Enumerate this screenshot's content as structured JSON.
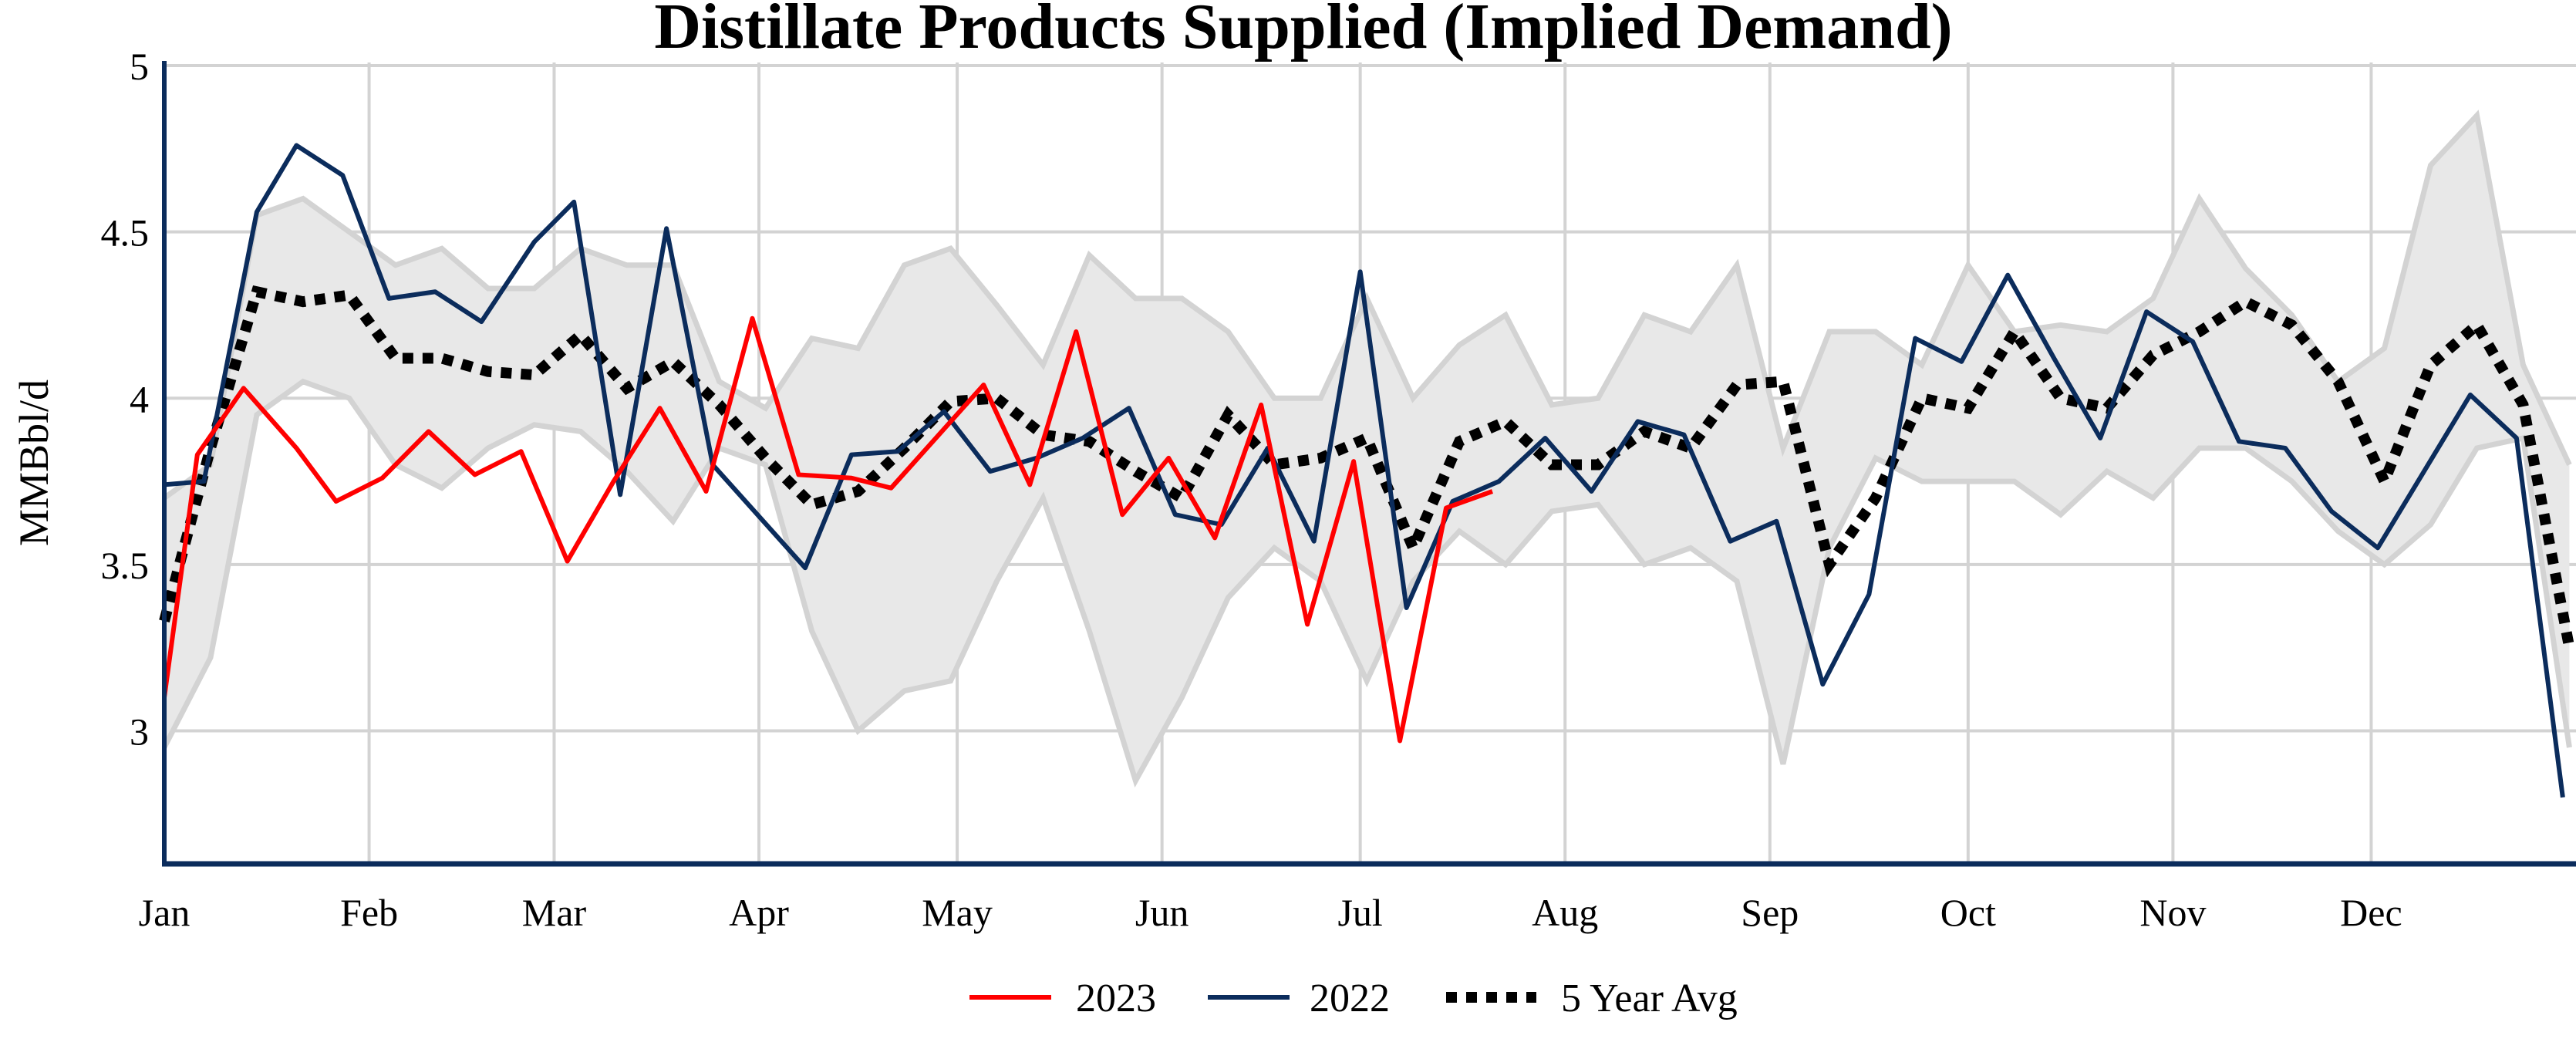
{
  "chart_data": {
    "type": "line",
    "title": "Distillate Products Supplied (Implied Demand)",
    "ylabel": "MMBbl/d",
    "xlabel": "",
    "ylim": [
      2.6,
      5
    ],
    "yticks": [
      "3",
      "3.5",
      "4",
      "4.5",
      "5"
    ],
    "ytick_values": [
      3,
      3.5,
      4,
      4.5,
      5
    ],
    "xticks": [
      "Jan",
      "Feb",
      "Mar",
      "Apr",
      "May",
      "Jun",
      "Jul",
      "Aug",
      "Sep",
      "Oct",
      "Nov",
      "Dec"
    ],
    "xtick_dates": [
      "01-01",
      "02-01",
      "03-01",
      "04-01",
      "05-01",
      "06-01",
      "07-01",
      "08-01",
      "09-01",
      "10-01",
      "11-01",
      "12-01"
    ],
    "grid": true,
    "legend_position": "bottom",
    "colors": {
      "2023": "#ff0000",
      "2022": "#0b2c5c",
      "avg": "#000000",
      "range_fill": "#e8e8e8",
      "range_line": "#d3d3d3",
      "grid": "#d3d3d3",
      "axis": "#0b2c5c"
    },
    "range_band": {
      "x": [
        "01-01",
        "01-08",
        "01-15",
        "01-22",
        "01-29",
        "02-05",
        "02-12",
        "02-19",
        "02-26",
        "03-05",
        "03-12",
        "03-19",
        "03-26",
        "04-02",
        "04-09",
        "04-16",
        "04-23",
        "04-30",
        "05-07",
        "05-14",
        "05-21",
        "05-28",
        "06-04",
        "06-11",
        "06-18",
        "06-25",
        "07-02",
        "07-09",
        "07-16",
        "07-23",
        "07-30",
        "08-06",
        "08-13",
        "08-20",
        "08-27",
        "09-03",
        "09-10",
        "09-17",
        "09-24",
        "10-01",
        "10-08",
        "10-15",
        "10-22",
        "10-29",
        "11-05",
        "11-12",
        "11-19",
        "11-26",
        "12-03",
        "12-10",
        "12-17",
        "12-24",
        "12-31"
      ],
      "upper": [
        3.7,
        3.8,
        4.55,
        4.6,
        4.5,
        4.4,
        4.45,
        4.33,
        4.33,
        4.45,
        4.4,
        4.4,
        4.05,
        3.97,
        4.18,
        4.15,
        4.4,
        4.45,
        4.28,
        4.1,
        4.43,
        4.3,
        4.3,
        4.2,
        4.0,
        4.0,
        4.3,
        4.0,
        4.16,
        4.25,
        3.98,
        4.0,
        4.25,
        4.2,
        4.4,
        3.85,
        4.2,
        4.2,
        4.1,
        4.4,
        4.2,
        4.22,
        4.2,
        4.3,
        4.6,
        4.39,
        4.25,
        4.05,
        4.15,
        4.7,
        4.85,
        4.1,
        3.8
      ],
      "lower": [
        2.95,
        3.22,
        3.95,
        4.05,
        4.0,
        3.8,
        3.73,
        3.85,
        3.92,
        3.9,
        3.78,
        3.63,
        3.85,
        3.8,
        3.3,
        3.0,
        3.12,
        3.15,
        3.45,
        3.7,
        3.3,
        2.85,
        3.1,
        3.4,
        3.55,
        3.45,
        3.15,
        3.45,
        3.6,
        3.5,
        3.66,
        3.68,
        3.5,
        3.55,
        3.45,
        2.9,
        3.55,
        3.82,
        3.75,
        3.75,
        3.75,
        3.65,
        3.78,
        3.7,
        3.85,
        3.85,
        3.75,
        3.6,
        3.5,
        3.62,
        3.85,
        3.88,
        2.95
      ]
    },
    "series": [
      {
        "name": "2023",
        "key": "2023",
        "x": [
          "01-01",
          "01-06",
          "01-13",
          "01-21",
          "01-27",
          "02-03",
          "02-10",
          "02-17",
          "02-24",
          "03-03",
          "03-10",
          "03-17",
          "03-24",
          "03-31",
          "04-07",
          "04-15",
          "04-21",
          "05-05",
          "05-12",
          "05-19",
          "05-26",
          "06-02",
          "06-09",
          "06-16",
          "06-23",
          "06-30",
          "07-07",
          "07-14",
          "07-21"
        ],
        "values": [
          3.1,
          3.83,
          4.03,
          3.85,
          3.69,
          3.76,
          3.9,
          3.77,
          3.84,
          3.51,
          3.75,
          3.97,
          3.72,
          4.24,
          3.77,
          3.76,
          3.73,
          4.04,
          3.74,
          4.2,
          3.65,
          3.82,
          3.58,
          3.98,
          3.32,
          3.81,
          2.97,
          3.67,
          3.72
        ]
      },
      {
        "name": "2022",
        "key": "2022",
        "x": [
          "01-01",
          "01-07",
          "01-15",
          "01-21",
          "01-28",
          "02-04",
          "02-11",
          "02-18",
          "02-26",
          "03-04",
          "03-11",
          "03-18",
          "03-25",
          "04-08",
          "04-15",
          "04-22",
          "04-29",
          "05-06",
          "05-13",
          "05-20",
          "05-27",
          "06-03",
          "06-10",
          "06-17",
          "06-24",
          "07-01",
          "07-08",
          "07-15",
          "07-22",
          "07-29",
          "08-05",
          "08-12",
          "08-19",
          "08-26",
          "09-02",
          "09-09",
          "09-16",
          "09-23",
          "09-30",
          "10-07",
          "10-14",
          "10-21",
          "10-28",
          "11-04",
          "11-11",
          "11-18",
          "11-25",
          "12-02",
          "12-16",
          "12-23",
          "12-30"
        ],
        "values": [
          3.74,
          3.75,
          4.56,
          4.76,
          4.67,
          4.3,
          4.32,
          4.23,
          4.47,
          4.59,
          3.71,
          4.51,
          3.8,
          3.49,
          3.83,
          3.84,
          3.96,
          3.78,
          3.82,
          3.88,
          3.97,
          3.65,
          3.62,
          3.85,
          3.57,
          4.38,
          3.37,
          3.69,
          3.75,
          3.88,
          3.72,
          3.93,
          3.89,
          3.57,
          3.63,
          3.14,
          3.41,
          4.18,
          4.11,
          4.37,
          4.12,
          3.88,
          4.26,
          4.17,
          3.87,
          3.85,
          3.66,
          3.55,
          4.01,
          3.88,
          2.8
        ]
      },
      {
        "name": "5 Year Avg",
        "key": "avg",
        "x": [
          "01-01",
          "01-08",
          "01-15",
          "01-22",
          "01-29",
          "02-05",
          "02-12",
          "02-19",
          "02-26",
          "03-05",
          "03-12",
          "03-19",
          "03-26",
          "04-02",
          "04-09",
          "04-16",
          "04-23",
          "04-30",
          "05-07",
          "05-14",
          "05-21",
          "05-28",
          "06-04",
          "06-11",
          "06-18",
          "06-25",
          "07-02",
          "07-09",
          "07-16",
          "07-23",
          "07-30",
          "08-06",
          "08-13",
          "08-20",
          "08-27",
          "09-03",
          "09-10",
          "09-17",
          "09-24",
          "10-01",
          "10-08",
          "10-15",
          "10-22",
          "10-29",
          "11-05",
          "11-12",
          "11-19",
          "11-26",
          "12-03",
          "12-10",
          "12-17",
          "12-24",
          "12-31"
        ],
        "values": [
          3.33,
          3.85,
          4.32,
          4.29,
          4.31,
          4.12,
          4.12,
          4.08,
          4.07,
          4.19,
          4.03,
          4.11,
          3.98,
          3.82,
          3.68,
          3.72,
          3.85,
          3.99,
          4.0,
          3.89,
          3.87,
          3.78,
          3.7,
          3.95,
          3.8,
          3.82,
          3.88,
          3.55,
          3.87,
          3.93,
          3.8,
          3.8,
          3.9,
          3.85,
          4.04,
          4.05,
          3.5,
          3.7,
          4.0,
          3.97,
          4.2,
          4.0,
          3.97,
          4.13,
          4.2,
          4.29,
          4.22,
          4.05,
          3.75,
          4.1,
          4.22,
          3.98,
          3.25
        ]
      }
    ]
  }
}
